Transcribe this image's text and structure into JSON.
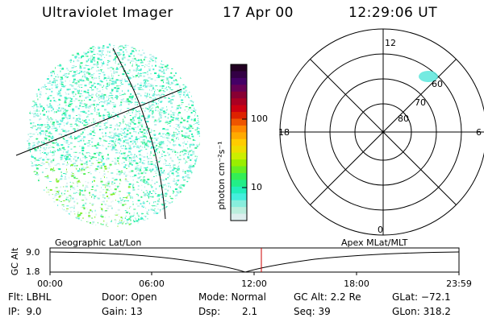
{
  "header": {
    "title": "Ultraviolet Imager",
    "date": "17 Apr 00",
    "time": "12:29:06 UT"
  },
  "colorbar": {
    "unit_label": "photon cm⁻²s⁻¹",
    "ticks": [
      "100",
      "10"
    ],
    "colors": [
      "#220022",
      "#330044",
      "#440066",
      "#660055",
      "#880033",
      "#aa0022",
      "#cc0011",
      "#dd2200",
      "#ee5500",
      "#ff8800",
      "#ffaa00",
      "#ffcc00",
      "#eedd00",
      "#ccee00",
      "#99ee00",
      "#66ee22",
      "#33ee55",
      "#22ee88",
      "#22eebb",
      "#44eedd",
      "#88eedd",
      "#bbeedd",
      "#ddeeee"
    ]
  },
  "polar": {
    "mlt_labels": [
      "12",
      "18",
      "6",
      "0"
    ],
    "lat_labels": [
      "60",
      "70",
      "80"
    ]
  },
  "timeline": {
    "left_label": "Geographic Lat/Lon",
    "right_label": "Apex MLat/MLT",
    "yaxis_title": "GC Alt",
    "y_ticks": [
      "9.0",
      "1.8"
    ],
    "x_ticks": [
      "00:00",
      "06:00",
      "12:00",
      "18:00",
      "23:59"
    ],
    "marker_color": "#cc0000"
  },
  "status": {
    "flt": "Flt: LBHL",
    "ip": "IP:  9.0",
    "door": "Door: Open",
    "gain": "Gain: 13",
    "mode": "Mode: Normal",
    "dsp_label": "Dsp:",
    "dsp_value": "2.1",
    "gc_alt": "GC Alt: 2.2 Re",
    "seq": "Seq: 39",
    "glat": "GLat: −72.1",
    "glon": "GLon: 318.2"
  }
}
